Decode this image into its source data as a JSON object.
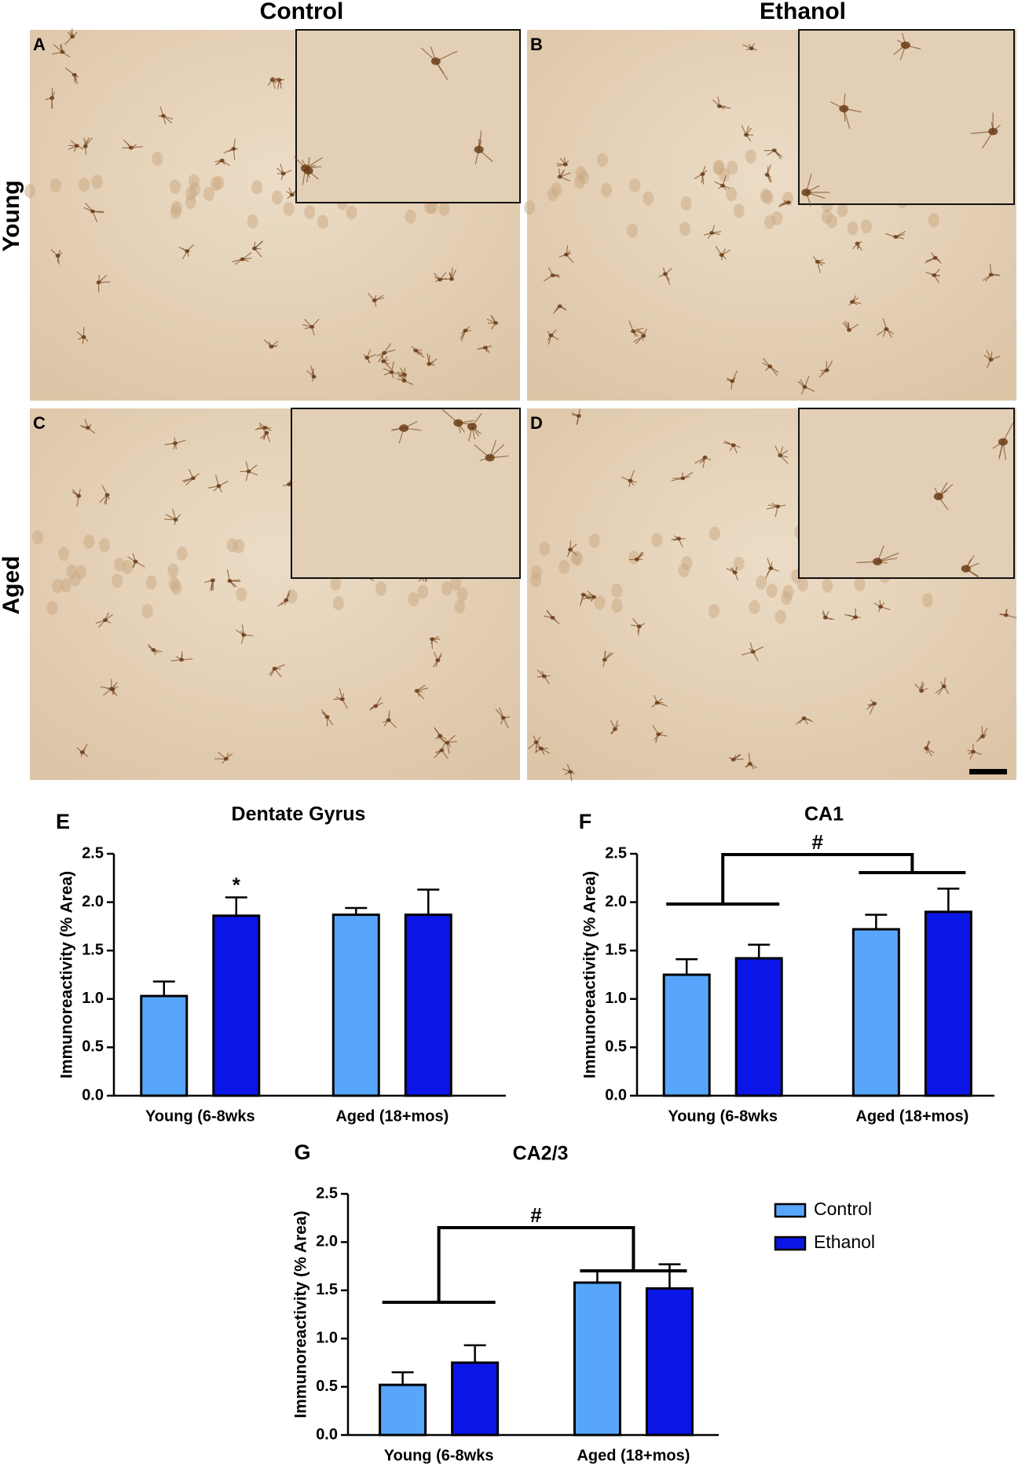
{
  "columns": [
    "Control",
    "Ethanol"
  ],
  "rows": [
    "Young",
    "Aged"
  ],
  "micrographs": [
    {
      "label": "A"
    },
    {
      "label": "B"
    },
    {
      "label": "C"
    },
    {
      "label": "D"
    }
  ],
  "chart_data": [
    {
      "panel": "E",
      "type": "bar",
      "title": "Dentate Gyrus",
      "y_label": "Immunoreactivity (% Area)",
      "categories": [
        "Young  (6-8wks",
        "Aged (18+mos)"
      ],
      "series": [
        {
          "color": "#58a6fb",
          "values": [
            1.03,
            1.87
          ],
          "errors": [
            0.15,
            0.07
          ]
        },
        {
          "color": "#0a17e6",
          "values": [
            1.86,
            1.87
          ],
          "errors": [
            0.19,
            0.26
          ]
        }
      ],
      "ylim": [
        0,
        2.5
      ],
      "yticks": [
        {
          "value": 0,
          "label": "0.0"
        },
        {
          "value": 0.5,
          "label": "0.5"
        },
        {
          "value": 1,
          "label": "1.0"
        },
        {
          "value": 1.5,
          "label": "1.5"
        },
        {
          "value": 2,
          "label": "2.0"
        },
        {
          "value": 2.5,
          "label": "2.5"
        }
      ],
      "annotation": "*"
    },
    {
      "panel": "F",
      "type": "bar",
      "title": "CA1",
      "y_label": "Immunoreactivity (% Area)",
      "categories": [
        "Young  (6-8wks",
        "Aged (18+mos)"
      ],
      "series": [
        {
          "color": "#58a6fb",
          "values": [
            1.25,
            1.72
          ],
          "errors": [
            0.16,
            0.15
          ]
        },
        {
          "color": "#0a17e6",
          "values": [
            1.42,
            1.9
          ],
          "errors": [
            0.14,
            0.24
          ]
        }
      ],
      "ylim": [
        0,
        2.5
      ],
      "yticks": [
        {
          "value": 0,
          "label": "0.0"
        },
        {
          "value": 0.5,
          "label": "0.5"
        },
        {
          "value": 1,
          "label": "1.0"
        },
        {
          "value": 1.5,
          "label": "1.5"
        },
        {
          "value": 2,
          "label": "2.0"
        },
        {
          "value": 2.5,
          "label": "2.5"
        }
      ],
      "annotation": "#"
    },
    {
      "panel": "G",
      "type": "bar",
      "title": "CA2/3",
      "y_label": "Immunoreactivity (% Area)",
      "categories": [
        "Young  (6-8wks",
        "Aged (18+mos)"
      ],
      "series": [
        {
          "name": "Control",
          "color": "#58a6fb",
          "values": [
            0.52,
            1.58
          ],
          "errors": [
            0.13,
            0.12
          ]
        },
        {
          "name": "Ethanol",
          "color": "#0a17e6",
          "values": [
            0.75,
            1.52
          ],
          "errors": [
            0.18,
            0.25
          ]
        }
      ],
      "ylim": [
        0,
        2.5
      ],
      "yticks": [
        {
          "value": 0,
          "label": "0.0"
        },
        {
          "value": 0.5,
          "label": "0.5"
        },
        {
          "value": 1,
          "label": "1.0"
        },
        {
          "value": 1.5,
          "label": "1.5"
        },
        {
          "value": 2,
          "label": "2.0"
        },
        {
          "value": 2.5,
          "label": "2.5"
        }
      ],
      "annotation": "#",
      "legend": "right"
    }
  ]
}
